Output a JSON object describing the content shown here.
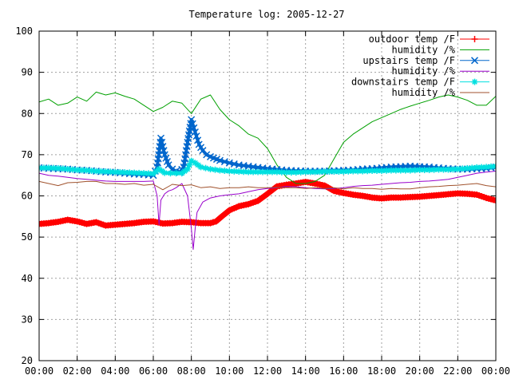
{
  "chart_data": {
    "type": "line",
    "title": "Temperature log: 2005-12-27",
    "xlabel": "",
    "ylabel": "",
    "xlim": [
      0,
      24
    ],
    "ylim": [
      20,
      100
    ],
    "xticks": [
      0,
      2,
      4,
      6,
      8,
      10,
      12,
      14,
      16,
      18,
      20,
      22,
      24
    ],
    "xtick_labels": [
      "00:00",
      "02:00",
      "04:00",
      "06:00",
      "08:00",
      "10:00",
      "12:00",
      "14:00",
      "16:00",
      "18:00",
      "20:00",
      "22:00",
      "00:00"
    ],
    "yticks": [
      20,
      30,
      40,
      50,
      60,
      70,
      80,
      90,
      100
    ],
    "ytick_labels": [
      "20",
      "30",
      "40",
      "50",
      "60",
      "70",
      "80",
      "90",
      "100"
    ],
    "grid": true,
    "legend_position": "top-right",
    "series": [
      {
        "name": "outdoor temp /F",
        "color": "#ff0000",
        "marker": "plus",
        "x": [
          0,
          0.5,
          1,
          1.5,
          2,
          2.5,
          3,
          3.5,
          4,
          4.5,
          5,
          5.5,
          6,
          6.5,
          7,
          7.5,
          8,
          8.5,
          9,
          9.3,
          9.6,
          10,
          10.5,
          11,
          11.5,
          12,
          12.5,
          13,
          13.5,
          14,
          14.5,
          15,
          15.5,
          16,
          16.5,
          17,
          17.5,
          18,
          18.5,
          19,
          19.5,
          20,
          20.5,
          21,
          21.5,
          22,
          22.5,
          23,
          23.5,
          24
        ],
        "y": [
          53.2,
          53.4,
          53.7,
          54.2,
          53.8,
          53.2,
          53.6,
          52.8,
          53.0,
          53.2,
          53.4,
          53.7,
          53.8,
          53.3,
          53.4,
          53.7,
          53.6,
          53.4,
          53.4,
          53.8,
          55.0,
          56.5,
          57.5,
          58.0,
          58.8,
          60.5,
          62.3,
          62.7,
          63.0,
          63.4,
          63.0,
          62.5,
          61.2,
          60.7,
          60.3,
          60.0,
          59.6,
          59.4,
          59.6,
          59.6,
          59.7,
          59.8,
          60.0,
          60.2,
          60.4,
          60.6,
          60.5,
          60.3,
          59.5,
          58.9
        ]
      },
      {
        "name": "humidity /%",
        "color": "#00a000",
        "marker": "none",
        "x": [
          0,
          0.5,
          1,
          1.5,
          2,
          2.5,
          3,
          3.5,
          4,
          4.5,
          5,
          5.5,
          6,
          6.5,
          7,
          7.5,
          8,
          8.5,
          9,
          9.5,
          10,
          10.5,
          11,
          11.5,
          12,
          12.5,
          13,
          13.5,
          14,
          14.5,
          15,
          15.5,
          16,
          16.5,
          17,
          17.5,
          18,
          18.5,
          19,
          19.5,
          20,
          20.5,
          21,
          21.5,
          22,
          22.5,
          23,
          23.5,
          24
        ],
        "y": [
          82.8,
          83.5,
          82.0,
          82.5,
          84.0,
          83.0,
          85.2,
          84.5,
          85.0,
          84.2,
          83.5,
          82.0,
          80.5,
          81.5,
          83.0,
          82.5,
          80.0,
          83.5,
          84.5,
          81.0,
          78.5,
          77.0,
          75.0,
          74.0,
          71.5,
          67.5,
          64.5,
          63.0,
          63.0,
          63.5,
          65.0,
          69.0,
          73.0,
          75.0,
          76.5,
          78.0,
          79.0,
          80.0,
          81.0,
          81.8,
          82.5,
          83.2,
          84.0,
          84.5,
          84.0,
          83.2,
          82.0,
          82.0,
          84.2
        ]
      },
      {
        "name": "upstairs temp /F",
        "color": "#0066cc",
        "marker": "cross",
        "x": [
          0,
          0.5,
          1,
          1.5,
          2,
          2.5,
          3,
          3.5,
          4,
          4.5,
          5,
          5.5,
          6,
          6.2,
          6.4,
          6.6,
          6.8,
          7.0,
          7.2,
          7.4,
          7.6,
          7.8,
          8.0,
          8.2,
          8.4,
          8.6,
          8.8,
          9.0,
          9.5,
          10,
          10.5,
          11,
          11.5,
          12,
          12.5,
          13,
          13.5,
          14,
          14.5,
          15,
          15.5,
          16,
          16.5,
          17,
          17.5,
          18,
          18.5,
          19,
          19.5,
          20,
          20.5,
          21,
          21.5,
          22,
          22.5,
          23,
          23.5,
          24
        ],
        "y": [
          66.8,
          66.7,
          66.6,
          66.5,
          66.3,
          66.2,
          66.0,
          65.8,
          65.7,
          65.5,
          65.3,
          65.2,
          65.0,
          67.0,
          74.0,
          70.0,
          67.5,
          66.5,
          66.0,
          65.8,
          67.0,
          73.0,
          78.5,
          75.5,
          72.5,
          71.0,
          70.0,
          69.5,
          68.6,
          68.0,
          67.5,
          67.2,
          66.9,
          66.6,
          66.4,
          66.2,
          66.1,
          66.0,
          66.0,
          66.0,
          66.1,
          66.2,
          66.3,
          66.5,
          66.6,
          66.8,
          67.0,
          67.1,
          67.2,
          67.1,
          67.0,
          66.8,
          66.6,
          66.5,
          66.5,
          66.6,
          66.7,
          67.0
        ]
      },
      {
        "name": "humidity /%",
        "color": "#9900cc",
        "marker": "none",
        "x": [
          0,
          0.5,
          1,
          1.5,
          2,
          2.5,
          3,
          3.5,
          4,
          4.5,
          5,
          5.5,
          6,
          6.2,
          6.3,
          6.4,
          6.6,
          6.8,
          7.0,
          7.2,
          7.5,
          7.8,
          8.0,
          8.1,
          8.2,
          8.3,
          8.6,
          9.0,
          9.5,
          10,
          10.5,
          11,
          11.5,
          12,
          12.5,
          13,
          13.5,
          14,
          14.5,
          15,
          15.5,
          16,
          16.5,
          17,
          17.5,
          18,
          18.5,
          19,
          19.5,
          20,
          20.5,
          21,
          21.5,
          22,
          22.5,
          23,
          23.5,
          24
        ],
        "y": [
          65.5,
          65.0,
          64.8,
          64.5,
          64.2,
          64.0,
          63.8,
          63.6,
          63.5,
          63.5,
          63.5,
          63.5,
          63.6,
          60.0,
          53.0,
          59.0,
          60.5,
          61.2,
          61.5,
          62.0,
          63.0,
          60.0,
          52.0,
          47.0,
          52.0,
          56.0,
          58.5,
          59.5,
          60.0,
          60.3,
          60.5,
          61.0,
          61.5,
          61.8,
          62.0,
          62.3,
          62.2,
          62.0,
          61.8,
          61.7,
          61.8,
          62.0,
          62.3,
          62.5,
          62.6,
          62.8,
          63.0,
          63.2,
          63.3,
          63.5,
          63.6,
          63.8,
          64.0,
          64.5,
          65.0,
          65.5,
          65.8,
          66.0
        ]
      },
      {
        "name": "downstairs temp /F",
        "color": "#00e0e0",
        "marker": "star",
        "x": [
          0,
          0.5,
          1,
          1.5,
          2,
          2.5,
          3,
          3.5,
          4,
          4.5,
          5,
          5.5,
          6,
          6.3,
          6.6,
          6.9,
          7.2,
          7.5,
          7.8,
          8.0,
          8.2,
          8.5,
          9,
          9.5,
          10,
          10.5,
          11,
          11.5,
          12,
          12.5,
          13,
          13.5,
          14,
          14.5,
          15,
          15.5,
          16,
          16.5,
          17,
          17.5,
          18,
          18.5,
          19,
          19.5,
          20,
          20.5,
          21,
          21.5,
          22,
          22.5,
          23,
          23.5,
          24
        ],
        "y": [
          66.8,
          66.8,
          66.7,
          66.5,
          66.3,
          66.2,
          66.0,
          65.9,
          65.8,
          65.7,
          65.6,
          65.5,
          65.4,
          66.5,
          65.6,
          65.5,
          65.5,
          65.5,
          66.5,
          68.5,
          68.0,
          67.0,
          66.5,
          66.2,
          66.0,
          65.9,
          65.8,
          65.8,
          65.8,
          65.8,
          65.7,
          65.7,
          65.8,
          65.8,
          65.9,
          65.9,
          65.9,
          66.0,
          66.0,
          66.1,
          66.1,
          66.2,
          66.2,
          66.2,
          66.3,
          66.3,
          66.4,
          66.4,
          66.5,
          66.7,
          66.9,
          67.0,
          67.2
        ]
      },
      {
        "name": "humidity /%",
        "color": "#a0522d",
        "marker": "none",
        "x": [
          0,
          0.5,
          1,
          1.5,
          2,
          2.5,
          3,
          3.5,
          4,
          4.5,
          5,
          5.5,
          6,
          6.5,
          7,
          7.5,
          8,
          8.5,
          9,
          9.5,
          10,
          10.5,
          11,
          11.5,
          12,
          12.5,
          13,
          13.5,
          14,
          14.5,
          15,
          15.5,
          16,
          16.5,
          17,
          17.5,
          18,
          18.5,
          19,
          19.5,
          20,
          20.5,
          21,
          21.5,
          22,
          22.5,
          23,
          23.5,
          24
        ],
        "y": [
          63.5,
          63.0,
          62.5,
          63.2,
          63.3,
          63.5,
          63.5,
          63.0,
          63.0,
          62.8,
          63.0,
          62.6,
          62.8,
          61.5,
          62.8,
          62.5,
          62.7,
          62.0,
          62.2,
          61.8,
          62.0,
          62.0,
          62.2,
          62.0,
          62.0,
          62.1,
          62.0,
          62.0,
          61.8,
          62.0,
          61.8,
          62.0,
          61.7,
          62.0,
          61.8,
          61.8,
          61.6,
          61.8,
          61.7,
          61.7,
          62.0,
          62.2,
          62.3,
          62.5,
          62.6,
          62.8,
          63.0,
          62.5,
          62.2
        ]
      }
    ]
  }
}
